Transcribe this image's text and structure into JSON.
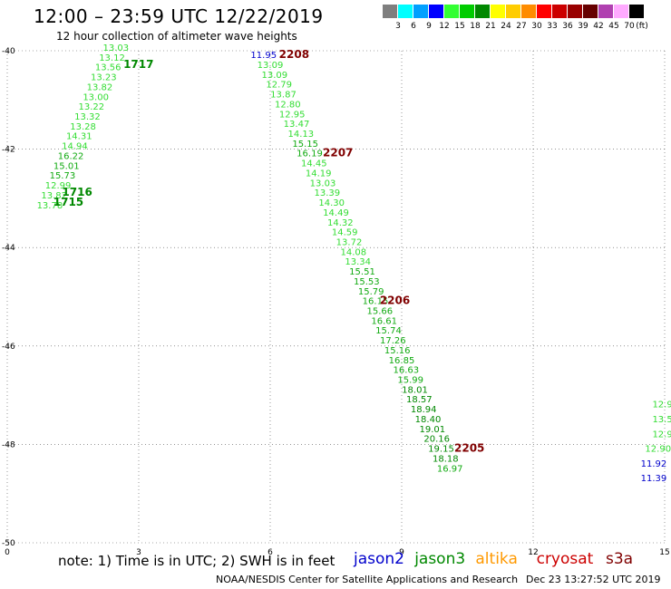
{
  "header": {
    "title": "12:00 – 23:59 UTC 12/22/2019",
    "subtitle": "12 hour collection of altimeter wave heights"
  },
  "colorbar": {
    "unit": "(ft)",
    "swatches": [
      {
        "label": "3",
        "color": "#7f7f7f"
      },
      {
        "label": "6",
        "color": "#00ffff"
      },
      {
        "label": "9",
        "color": "#00a0ff"
      },
      {
        "label": "12",
        "color": "#0000ff"
      },
      {
        "label": "15",
        "color": "#33ff33"
      },
      {
        "label": "18",
        "color": "#00cc00"
      },
      {
        "label": "21",
        "color": "#008800"
      },
      {
        "label": "24",
        "color": "#ffff00"
      },
      {
        "label": "27",
        "color": "#ffcc00"
      },
      {
        "label": "30",
        "color": "#ff8c00"
      },
      {
        "label": "33",
        "color": "#ff0000"
      },
      {
        "label": "36",
        "color": "#cc0000"
      },
      {
        "label": "39",
        "color": "#990000"
      },
      {
        "label": "42",
        "color": "#660000"
      },
      {
        "label": "45",
        "color": "#b040b0"
      },
      {
        "label": "70",
        "color": "#ffaaff"
      },
      {
        "label": "",
        "color": "#000000"
      }
    ]
  },
  "map": {
    "lat_labels": [
      "-40",
      "-42",
      "-44",
      "-46",
      "-48",
      "-50"
    ],
    "lon_labels": [
      "0",
      "3",
      "6",
      "9",
      "12",
      "15"
    ]
  },
  "chart_data": {
    "type": "scatter",
    "title": "12 hour collection of altimeter wave heights",
    "xlabel": "",
    "ylabel": "",
    "xlim": [
      0,
      15
    ],
    "ylim": [
      -50,
      -40
    ],
    "grid": true,
    "x_ticks": [
      0,
      3,
      6,
      9,
      12,
      15
    ],
    "y_ticks": [
      -40,
      -42,
      -44,
      -46,
      -48,
      -50
    ],
    "series": [
      {
        "name": "jason3",
        "color_by_value": true,
        "points": [
          {
            "lon": 2.48,
            "lat": -40.0,
            "v": "13.03"
          },
          {
            "lon": 2.39,
            "lat": -40.2,
            "v": "13.12"
          },
          {
            "lon": 2.3,
            "lat": -40.4,
            "v": "13.56"
          },
          {
            "lon": 2.2,
            "lat": -40.6,
            "v": "13.23"
          },
          {
            "lon": 2.11,
            "lat": -40.8,
            "v": "13.82"
          },
          {
            "lon": 2.02,
            "lat": -41.0,
            "v": "13.00"
          },
          {
            "lon": 1.92,
            "lat": -41.2,
            "v": "13.22"
          },
          {
            "lon": 1.83,
            "lat": -41.4,
            "v": "13.32"
          },
          {
            "lon": 1.73,
            "lat": -41.6,
            "v": "13.28"
          },
          {
            "lon": 1.64,
            "lat": -41.8,
            "v": "14.31"
          },
          {
            "lon": 1.54,
            "lat": -42.0,
            "v": "14.94"
          },
          {
            "lon": 1.45,
            "lat": -42.2,
            "v": "16.22"
          },
          {
            "lon": 1.35,
            "lat": -42.4,
            "v": "15.01"
          },
          {
            "lon": 1.26,
            "lat": -42.6,
            "v": "15.73"
          },
          {
            "lon": 1.16,
            "lat": -42.8,
            "v": "12.99"
          },
          {
            "lon": 1.07,
            "lat": -43.0,
            "v": "13.82"
          },
          {
            "lon": 0.97,
            "lat": -43.2,
            "v": "13.78"
          }
        ]
      },
      {
        "name": "jason3",
        "color_by_value": true,
        "points": [
          {
            "lon": 6.0,
            "lat": -40.35,
            "v": "13.09"
          },
          {
            "lon": 6.1,
            "lat": -40.55,
            "v": "13.09"
          },
          {
            "lon": 6.2,
            "lat": -40.75,
            "v": "12.79"
          },
          {
            "lon": 6.3,
            "lat": -40.95,
            "v": "13.87"
          },
          {
            "lon": 6.4,
            "lat": -41.15,
            "v": "12.80"
          },
          {
            "lon": 6.5,
            "lat": -41.35,
            "v": "12.95"
          },
          {
            "lon": 6.6,
            "lat": -41.55,
            "v": "13.47"
          },
          {
            "lon": 6.7,
            "lat": -41.75,
            "v": "14.13"
          },
          {
            "lon": 6.8,
            "lat": -41.95,
            "v": "15.15"
          },
          {
            "lon": 6.9,
            "lat": -42.15,
            "v": "16.19"
          },
          {
            "lon": 7.0,
            "lat": -42.35,
            "v": "14.45"
          },
          {
            "lon": 7.1,
            "lat": -42.55,
            "v": "14.19"
          },
          {
            "lon": 7.2,
            "lat": -42.75,
            "v": "13.03"
          },
          {
            "lon": 7.3,
            "lat": -42.95,
            "v": "13.39"
          },
          {
            "lon": 7.4,
            "lat": -43.15,
            "v": "14.30"
          },
          {
            "lon": 7.5,
            "lat": -43.35,
            "v": "14.49"
          },
          {
            "lon": 7.6,
            "lat": -43.55,
            "v": "14.32"
          },
          {
            "lon": 7.7,
            "lat": -43.75,
            "v": "14.59"
          },
          {
            "lon": 7.8,
            "lat": -43.95,
            "v": "13.72"
          },
          {
            "lon": 7.9,
            "lat": -44.15,
            "v": "14.08"
          },
          {
            "lon": 8.0,
            "lat": -44.35,
            "v": "13.34"
          },
          {
            "lon": 8.1,
            "lat": -44.55,
            "v": "15.51"
          },
          {
            "lon": 8.2,
            "lat": -44.75,
            "v": "15.53"
          },
          {
            "lon": 8.3,
            "lat": -44.95,
            "v": "15.79"
          },
          {
            "lon": 8.4,
            "lat": -45.15,
            "v": "16.15"
          },
          {
            "lon": 8.5,
            "lat": -45.35,
            "v": "15.66"
          },
          {
            "lon": 8.6,
            "lat": -45.55,
            "v": "16.61"
          },
          {
            "lon": 8.7,
            "lat": -45.75,
            "v": "15.74"
          },
          {
            "lon": 8.8,
            "lat": -45.95,
            "v": "17.26"
          },
          {
            "lon": 8.9,
            "lat": -46.15,
            "v": "15.16"
          },
          {
            "lon": 9.0,
            "lat": -46.35,
            "v": "16.85"
          },
          {
            "lon": 9.1,
            "lat": -46.55,
            "v": "16.63"
          },
          {
            "lon": 9.2,
            "lat": -46.75,
            "v": "15.99"
          },
          {
            "lon": 9.3,
            "lat": -46.95,
            "v": "18.01"
          },
          {
            "lon": 9.4,
            "lat": -47.15,
            "v": "18.57"
          },
          {
            "lon": 9.5,
            "lat": -47.35,
            "v": "18.94"
          },
          {
            "lon": 9.6,
            "lat": -47.55,
            "v": "18.40"
          },
          {
            "lon": 9.7,
            "lat": -47.75,
            "v": "19.01"
          },
          {
            "lon": 9.8,
            "lat": -47.95,
            "v": "20.16"
          },
          {
            "lon": 9.9,
            "lat": -48.15,
            "v": "19.15"
          },
          {
            "lon": 10.0,
            "lat": -48.35,
            "v": "18.18"
          },
          {
            "lon": 10.1,
            "lat": -48.55,
            "v": "16.97"
          }
        ]
      },
      {
        "name": "jason2",
        "color_by_value": true,
        "points": [
          {
            "lon": 5.85,
            "lat": -40.15,
            "v": "11.95"
          },
          {
            "lon": 14.75,
            "lat": -48.45,
            "v": "11.92"
          },
          {
            "lon": 14.75,
            "lat": -48.75,
            "v": "11.39"
          }
        ]
      },
      {
        "name": "jason3",
        "color_by_value": true,
        "points": [
          {
            "lon": 14.95,
            "lat": -47.25,
            "v": "12.9"
          },
          {
            "lon": 14.95,
            "lat": -47.55,
            "v": "13.5"
          },
          {
            "lon": 14.95,
            "lat": -47.85,
            "v": "12.9"
          },
          {
            "lon": 14.85,
            "lat": -48.15,
            "v": "12.90"
          }
        ]
      }
    ],
    "time_labels": [
      {
        "text": "1717",
        "lon": 2.65,
        "lat": -40.35,
        "color": "#008800"
      },
      {
        "text": "1716",
        "lon": 1.25,
        "lat": -42.95,
        "color": "#008800"
      },
      {
        "text": "1715",
        "lon": 1.05,
        "lat": -43.15,
        "color": "#008800"
      },
      {
        "text": "2208",
        "lon": 6.2,
        "lat": -40.15,
        "color": "#800000"
      },
      {
        "text": "2207",
        "lon": 7.2,
        "lat": -42.15,
        "color": "#800000"
      },
      {
        "text": "2206",
        "lon": 8.5,
        "lat": -45.15,
        "color": "#800000"
      },
      {
        "text": "2205",
        "lon": 10.2,
        "lat": -48.15,
        "color": "#800000"
      }
    ]
  },
  "footer": {
    "note": "note:  1) Time is in UTC; 2) SWH is in feet",
    "legend": [
      {
        "label": "jason2",
        "color": "#0000cc"
      },
      {
        "label": "jason3",
        "color": "#008800"
      },
      {
        "label": "altika",
        "color": "#ff9900"
      },
      {
        "label": "cryosat",
        "color": "#cc0000"
      },
      {
        "label": "s3a",
        "color": "#800000"
      }
    ],
    "credit": "NOAA/NESDIS Center for Satellite Applications and Research",
    "timestamp": "Dec 23 13:27:52 UTC 2019"
  }
}
